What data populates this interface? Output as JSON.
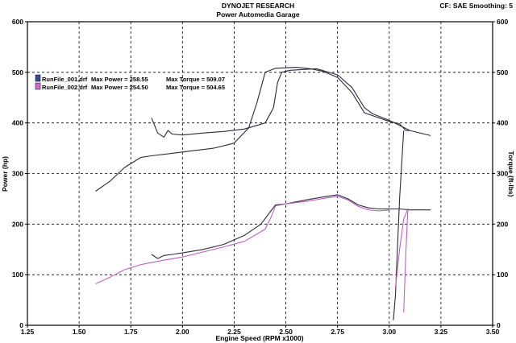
{
  "header": {
    "title": "DYNOJET RESEARCH",
    "subtitle": "Power Automedia Garage",
    "settings": "CF: SAE  Smoothing: 5"
  },
  "colors": {
    "run1": "#2a2a3a",
    "run1_swatch": "#3a4a9a",
    "run2": "#c060c0",
    "run2_swatch": "#d070d0",
    "grid": "#000000",
    "axis": "#000000"
  },
  "chart_data": {
    "type": "line",
    "xlabel": "Engine Speed (RPM x1000)",
    "ylabel": "Power (hp)",
    "ylabel_right": "Torque (ft-lbs)",
    "xlim": [
      1.25,
      3.5
    ],
    "ylim": [
      0,
      600
    ],
    "xticks": [
      "1.25",
      "1.50",
      "1.75",
      "2.00",
      "2.25",
      "2.50",
      "2.75",
      "3.00",
      "3.25",
      "3.50"
    ],
    "yticks": [
      "0",
      "100",
      "200",
      "300",
      "400",
      "500",
      "600"
    ],
    "yticks_right": [
      "0",
      "100",
      "200",
      "300",
      "400",
      "500",
      "600"
    ],
    "grid": true,
    "legend": [
      {
        "file": "RunFile_001.drf",
        "max_power_label": "Max Power = 258.55",
        "max_torque_label": "Max Torque = 509.07"
      },
      {
        "file": "RunFile_002.drf",
        "max_power_label": "Max Power = 254.50",
        "max_torque_label": "Max Torque = 504.65"
      }
    ],
    "series": [
      {
        "run": 1,
        "measure": "torque",
        "points": [
          [
            1.85,
            410
          ],
          [
            1.88,
            380
          ],
          [
            1.91,
            372
          ],
          [
            1.93,
            385
          ],
          [
            1.95,
            378
          ],
          [
            2.0,
            376
          ],
          [
            2.1,
            380
          ],
          [
            2.2,
            383
          ],
          [
            2.3,
            388
          ],
          [
            2.4,
            400
          ],
          [
            2.44,
            430
          ],
          [
            2.46,
            480
          ],
          [
            2.48,
            500
          ],
          [
            2.52,
            504
          ],
          [
            2.6,
            506
          ],
          [
            2.65,
            507
          ],
          [
            2.75,
            495
          ],
          [
            2.82,
            470
          ],
          [
            2.88,
            430
          ],
          [
            2.92,
            418
          ],
          [
            3.0,
            405
          ],
          [
            3.05,
            395
          ],
          [
            3.1,
            385
          ],
          [
            3.2,
            375
          ]
        ]
      },
      {
        "run": 1,
        "measure": "power",
        "points": [
          [
            1.85,
            140
          ],
          [
            1.88,
            132
          ],
          [
            1.91,
            138
          ],
          [
            1.95,
            140
          ],
          [
            2.0,
            143
          ],
          [
            2.1,
            150
          ],
          [
            2.2,
            160
          ],
          [
            2.3,
            178
          ],
          [
            2.38,
            200
          ],
          [
            2.42,
            222
          ],
          [
            2.45,
            238
          ],
          [
            2.5,
            240
          ],
          [
            2.6,
            248
          ],
          [
            2.7,
            255
          ],
          [
            2.75,
            258
          ],
          [
            2.8,
            250
          ],
          [
            2.85,
            238
          ],
          [
            2.9,
            232
          ],
          [
            2.95,
            230
          ],
          [
            3.0,
            230
          ],
          [
            3.05,
            230
          ],
          [
            3.1,
            228
          ],
          [
            3.2,
            228
          ]
        ]
      },
      {
        "run": 1,
        "measure": "torque-trace",
        "points": [
          [
            1.58,
            265
          ],
          [
            1.65,
            285
          ],
          [
            1.72,
            312
          ],
          [
            1.8,
            332
          ],
          [
            1.85,
            335
          ],
          [
            1.95,
            340
          ],
          [
            2.05,
            345
          ],
          [
            2.15,
            350
          ],
          [
            2.25,
            360
          ],
          [
            2.32,
            390
          ],
          [
            2.36,
            440
          ],
          [
            2.4,
            500
          ],
          [
            2.45,
            508
          ],
          [
            2.55,
            510
          ],
          [
            2.62,
            507
          ],
          [
            2.68,
            502
          ],
          [
            2.75,
            490
          ],
          [
            2.82,
            460
          ],
          [
            2.88,
            420
          ],
          [
            2.95,
            410
          ],
          [
            3.0,
            403
          ],
          [
            3.05,
            398
          ],
          [
            3.08,
            385
          ],
          [
            3.1,
            385
          ]
        ]
      },
      {
        "run": 1,
        "measure": "power-dropout",
        "points": [
          [
            3.02,
            10
          ],
          [
            3.03,
            60
          ],
          [
            3.05,
            250
          ],
          [
            3.07,
            385
          ]
        ]
      },
      {
        "run": 2,
        "measure": "power",
        "points": [
          [
            1.58,
            82
          ],
          [
            1.65,
            95
          ],
          [
            1.72,
            110
          ],
          [
            1.8,
            120
          ],
          [
            1.9,
            128
          ],
          [
            2.0,
            135
          ],
          [
            2.1,
            145
          ],
          [
            2.2,
            155
          ],
          [
            2.3,
            166
          ],
          [
            2.4,
            190
          ],
          [
            2.43,
            215
          ],
          [
            2.45,
            236
          ],
          [
            2.5,
            240
          ],
          [
            2.6,
            245
          ],
          [
            2.7,
            252
          ],
          [
            2.75,
            255
          ],
          [
            2.8,
            248
          ],
          [
            2.85,
            235
          ],
          [
            2.9,
            228
          ],
          [
            2.95,
            226
          ],
          [
            3.0,
            228
          ]
        ]
      },
      {
        "run": 2,
        "measure": "power-dropout",
        "points": [
          [
            3.03,
            75
          ],
          [
            3.05,
            150
          ],
          [
            3.07,
            210
          ],
          [
            3.09,
            230
          ],
          [
            3.08,
            140
          ],
          [
            3.07,
            25
          ]
        ]
      }
    ]
  }
}
